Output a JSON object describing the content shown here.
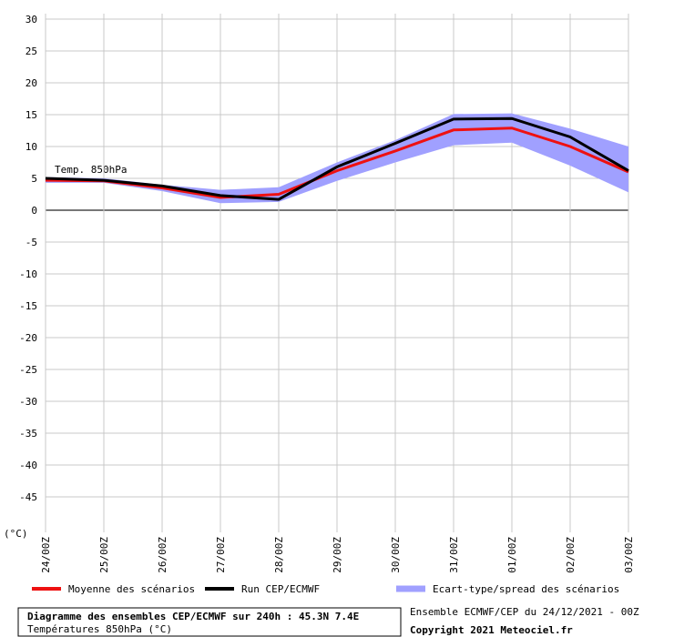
{
  "chart_data": {
    "type": "line",
    "title": "Diagramme des ensembles CEP/ECMWF sur 240h : 45.3N 7.4E",
    "subtitle": "Températures 850hPa (°C)",
    "source": "Ensemble ECMWF/CEP du 24/12/2021 - 00Z",
    "copyright": "Copyright 2021 Meteociel.fr",
    "annotation": "Temp. 850hPa",
    "y_label": "(°C)",
    "categories": [
      "24/00Z",
      "25/00Z",
      "26/00Z",
      "27/00Z",
      "28/00Z",
      "29/00Z",
      "30/00Z",
      "31/00Z",
      "01/00Z",
      "02/00Z",
      "03/00Z"
    ],
    "band": {
      "name": "Ecart-type/spread des scénarios",
      "color": "#a0a0ff",
      "low": [
        4.3,
        4.3,
        3.0,
        1.1,
        1.3,
        4.6,
        7.5,
        10.2,
        10.6,
        7.0,
        2.8
      ],
      "high": [
        5.2,
        5.0,
        4.0,
        3.2,
        3.6,
        7.5,
        11.0,
        15.1,
        15.2,
        12.8,
        10.0
      ]
    },
    "series": [
      {
        "name": "Moyenne des scénarios",
        "color": "#ee1111",
        "values": [
          4.7,
          4.6,
          3.5,
          2.0,
          2.5,
          6.2,
          9.3,
          12.6,
          12.9,
          10.0,
          6.0
        ]
      },
      {
        "name": "Run CEP/ECMWF",
        "color": "#000000",
        "values": [
          5.0,
          4.7,
          3.8,
          2.3,
          1.7,
          6.8,
          10.5,
          14.3,
          14.4,
          11.5,
          6.2
        ]
      }
    ],
    "ylim": [
      -50,
      30
    ],
    "yticks": [
      30,
      25,
      20,
      15,
      10,
      5,
      0,
      -5,
      -10,
      -15,
      -20,
      -25,
      -30,
      -35,
      -40,
      -45
    ],
    "grid": true
  }
}
